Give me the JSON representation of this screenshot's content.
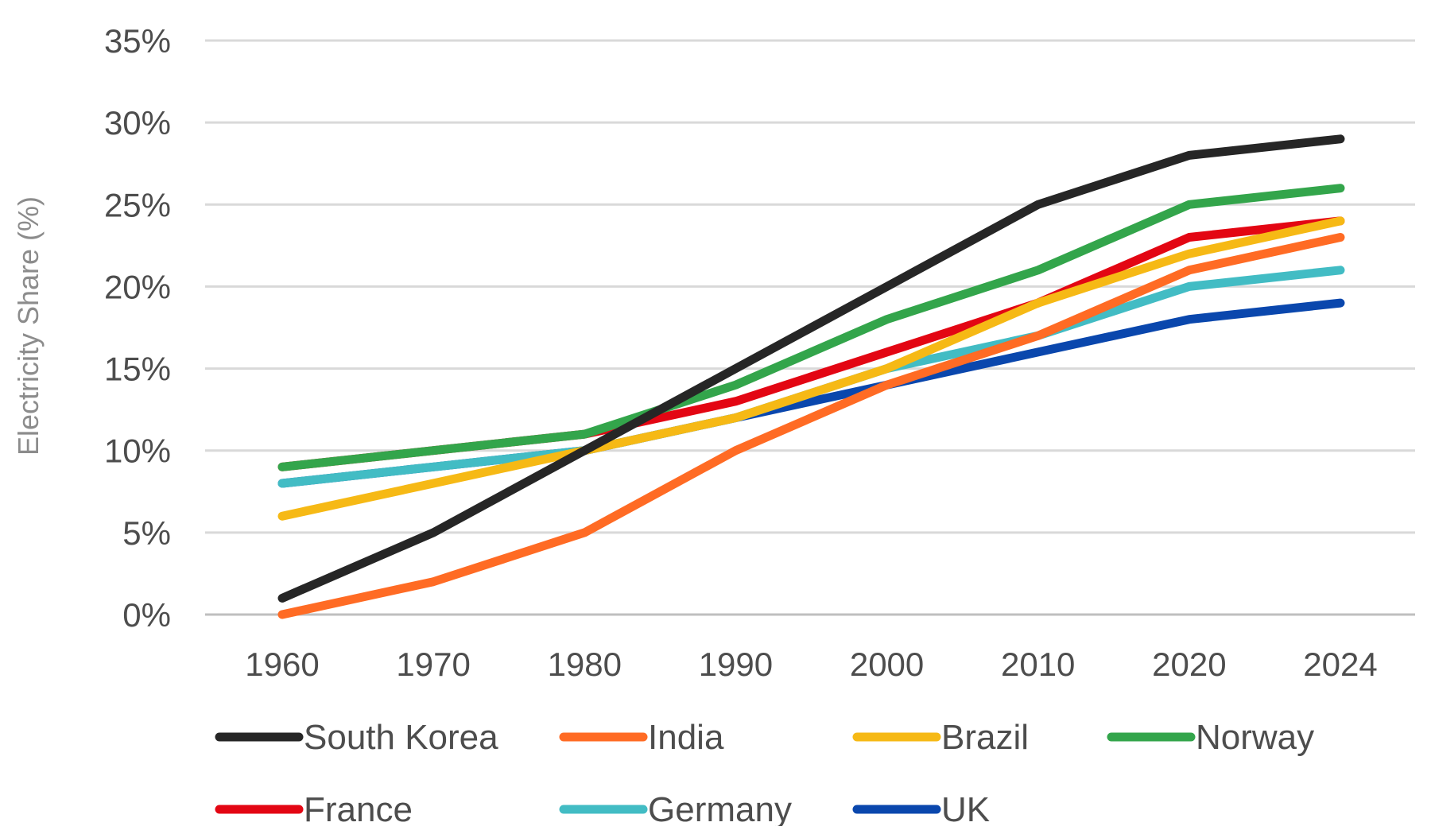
{
  "chart_data": {
    "type": "line",
    "title": "",
    "xlabel": "",
    "ylabel": "Electricity Share (%)",
    "categories": [
      "1960",
      "1970",
      "1980",
      "1990",
      "2000",
      "2010",
      "2020",
      "2024"
    ],
    "y_ticks": [
      "0%",
      "5%",
      "10%",
      "15%",
      "20%",
      "25%",
      "30%",
      "35%"
    ],
    "ylim": [
      0,
      35
    ],
    "grid": "horizontal",
    "legend_position": "bottom",
    "series": [
      {
        "name": "South Korea",
        "color": "#262626",
        "values": [
          1,
          5,
          10,
          15,
          20,
          25,
          28,
          29
        ]
      },
      {
        "name": "India",
        "color": "#ff6b24",
        "values": [
          0,
          2,
          5,
          10,
          14,
          17,
          21,
          23
        ]
      },
      {
        "name": "Brazil",
        "color": "#f6b915",
        "values": [
          6,
          8,
          10,
          12,
          15,
          19,
          22,
          24
        ]
      },
      {
        "name": "Norway",
        "color": "#33a54b",
        "values": [
          9,
          10,
          11,
          14,
          18,
          21,
          25,
          26
        ]
      },
      {
        "name": "France",
        "color": "#e30613",
        "values": [
          9,
          10,
          11,
          13,
          16,
          19,
          23,
          24
        ]
      },
      {
        "name": "Germany",
        "color": "#42bcc4",
        "values": [
          8,
          9,
          10,
          12,
          15,
          17,
          20,
          21
        ]
      },
      {
        "name": "UK",
        "color": "#0a47ad",
        "values": [
          8,
          9,
          10,
          12,
          14,
          16,
          18,
          19
        ]
      }
    ]
  }
}
